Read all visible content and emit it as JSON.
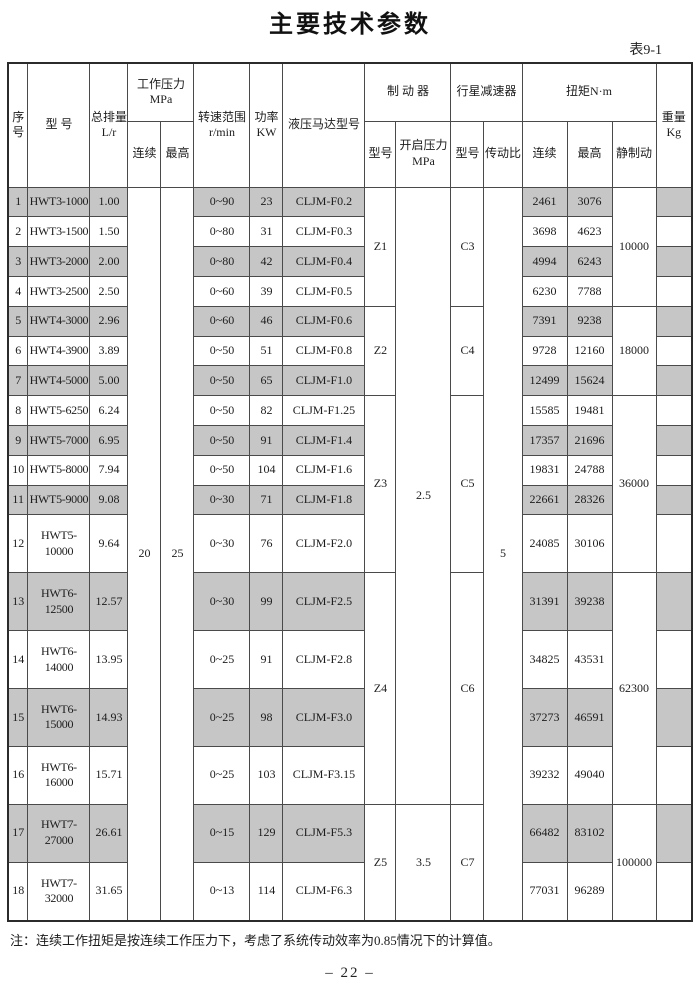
{
  "title": "主要技术参数",
  "table_label": "表9-1",
  "note": "注：连续工作扭矩是按连续工作压力下，考虑了系统传动效率为0.85情况下的计算值。",
  "page_number": "– 22 –",
  "colors": {
    "row_shade": "#c6c6c6",
    "border": "#4a4a4a",
    "outer_border": "#2b2b2b",
    "text": "#1c1c1c",
    "background": "#ffffff"
  },
  "table": {
    "header": {
      "no": "序\n号",
      "model": "型  号",
      "displacement": "总排量\nL/r",
      "pressure_group": "工作压力\nMPa",
      "pressure_cont_label": "连续",
      "pressure_max_label": "最高",
      "speed": "转速范围\nr/min",
      "power": "功率\nKW",
      "motor": "液压马达型号",
      "brake_group": "制  动  器",
      "brake_model_label": "型号",
      "brake_pressure_label": "开启压力\nMPa",
      "reducer_group": "行星减速器",
      "reducer_model_label": "型号",
      "ratio_label": "传动比",
      "torque_group": "扭矩N·m",
      "torque_cont_label": "连续",
      "torque_max_label": "最高",
      "torque_static_label": "静制动",
      "weight": "重量\nKg"
    },
    "rows": [
      {
        "no": "1",
        "model": "HWT3-1000",
        "displacement": "1.00",
        "speed": "0~90",
        "power": "23",
        "motor": "CLJM-F0.2",
        "torque_cont": "2461",
        "torque_max": "3076",
        "weight": ""
      },
      {
        "no": "2",
        "model": "HWT3-1500",
        "displacement": "1.50",
        "speed": "0~80",
        "power": "31",
        "motor": "CLJM-F0.3",
        "torque_cont": "3698",
        "torque_max": "4623",
        "weight": ""
      },
      {
        "no": "3",
        "model": "HWT3-2000",
        "displacement": "2.00",
        "speed": "0~80",
        "power": "42",
        "motor": "CLJM-F0.4",
        "torque_cont": "4994",
        "torque_max": "6243",
        "weight": ""
      },
      {
        "no": "4",
        "model": "HWT3-2500",
        "displacement": "2.50",
        "speed": "0~60",
        "power": "39",
        "motor": "CLJM-F0.5",
        "torque_cont": "6230",
        "torque_max": "7788",
        "weight": ""
      },
      {
        "no": "5",
        "model": "HWT4-3000",
        "displacement": "2.96",
        "speed": "0~60",
        "power": "46",
        "motor": "CLJM-F0.6",
        "torque_cont": "7391",
        "torque_max": "9238",
        "weight": ""
      },
      {
        "no": "6",
        "model": "HWT4-3900",
        "displacement": "3.89",
        "speed": "0~50",
        "power": "51",
        "motor": "CLJM-F0.8",
        "torque_cont": "9728",
        "torque_max": "12160",
        "weight": ""
      },
      {
        "no": "7",
        "model": "HWT4-5000",
        "displacement": "5.00",
        "speed": "0~50",
        "power": "65",
        "motor": "CLJM-F1.0",
        "torque_cont": "12499",
        "torque_max": "15624",
        "weight": ""
      },
      {
        "no": "8",
        "model": "HWT5-6250",
        "displacement": "6.24",
        "speed": "0~50",
        "power": "82",
        "motor": "CLJM-F1.25",
        "torque_cont": "15585",
        "torque_max": "19481",
        "weight": ""
      },
      {
        "no": "9",
        "model": "HWT5-7000",
        "displacement": "6.95",
        "speed": "0~50",
        "power": "91",
        "motor": "CLJM-F1.4",
        "torque_cont": "17357",
        "torque_max": "21696",
        "weight": ""
      },
      {
        "no": "10",
        "model": "HWT5-8000",
        "displacement": "7.94",
        "speed": "0~50",
        "power": "104",
        "motor": "CLJM-F1.6",
        "torque_cont": "19831",
        "torque_max": "24788",
        "weight": ""
      },
      {
        "no": "11",
        "model": "HWT5-9000",
        "displacement": "9.08",
        "speed": "0~30",
        "power": "71",
        "motor": "CLJM-F1.8",
        "torque_cont": "22661",
        "torque_max": "28326",
        "weight": ""
      },
      {
        "no": "12",
        "model": "HWT5-10000",
        "displacement": "9.64",
        "speed": "0~30",
        "power": "76",
        "motor": "CLJM-F2.0",
        "torque_cont": "24085",
        "torque_max": "30106",
        "weight": ""
      },
      {
        "no": "13",
        "model": "HWT6-12500",
        "displacement": "12.57",
        "speed": "0~30",
        "power": "99",
        "motor": "CLJM-F2.5",
        "torque_cont": "31391",
        "torque_max": "39238",
        "weight": ""
      },
      {
        "no": "14",
        "model": "HWT6-14000",
        "displacement": "13.95",
        "speed": "0~25",
        "power": "91",
        "motor": "CLJM-F2.8",
        "torque_cont": "34825",
        "torque_max": "43531",
        "weight": ""
      },
      {
        "no": "15",
        "model": "HWT6-15000",
        "displacement": "14.93",
        "speed": "0~25",
        "power": "98",
        "motor": "CLJM-F3.0",
        "torque_cont": "37273",
        "torque_max": "46591",
        "weight": ""
      },
      {
        "no": "16",
        "model": "HWT6-16000",
        "displacement": "15.71",
        "speed": "0~25",
        "power": "103",
        "motor": "CLJM-F3.15",
        "torque_cont": "39232",
        "torque_max": "49040",
        "weight": ""
      },
      {
        "no": "17",
        "model": "HWT7-27000",
        "displacement": "26.61",
        "speed": "0~15",
        "power": "129",
        "motor": "CLJM-F5.3",
        "torque_cont": "66482",
        "torque_max": "83102",
        "weight": ""
      },
      {
        "no": "18",
        "model": "HWT7-32000",
        "displacement": "31.65",
        "speed": "0~13",
        "power": "114",
        "motor": "CLJM-F6.3",
        "torque_cont": "77031",
        "torque_max": "96289",
        "weight": ""
      }
    ],
    "merged": {
      "pressure_cont": [
        {
          "value": "20",
          "from": 1,
          "to": 18
        }
      ],
      "pressure_max": [
        {
          "value": "25",
          "from": 1,
          "to": 18
        }
      ],
      "brake_model": [
        {
          "value": "Z1",
          "from": 1,
          "to": 4
        },
        {
          "value": "Z2",
          "from": 5,
          "to": 7
        },
        {
          "value": "Z3",
          "from": 8,
          "to": 12
        },
        {
          "value": "Z4",
          "from": 13,
          "to": 16
        },
        {
          "value": "Z5",
          "from": 17,
          "to": 18
        }
      ],
      "brake_pressure": [
        {
          "value": "2.5",
          "from": 1,
          "to": 16
        },
        {
          "value": "3.5",
          "from": 17,
          "to": 18
        }
      ],
      "reducer_model": [
        {
          "value": "C3",
          "from": 1,
          "to": 4
        },
        {
          "value": "C4",
          "from": 5,
          "to": 7
        },
        {
          "value": "C5",
          "from": 8,
          "to": 12
        },
        {
          "value": "C6",
          "from": 13,
          "to": 16
        },
        {
          "value": "C7",
          "from": 17,
          "to": 18
        }
      ],
      "ratio": [
        {
          "value": "5",
          "from": 1,
          "to": 18
        }
      ],
      "static_brake": [
        {
          "value": "10000",
          "from": 1,
          "to": 4
        },
        {
          "value": "18000",
          "from": 5,
          "to": 7
        },
        {
          "value": "36000",
          "from": 8,
          "to": 12
        },
        {
          "value": "62300",
          "from": 13,
          "to": 16
        },
        {
          "value": "100000",
          "from": 17,
          "to": 18
        }
      ]
    }
  }
}
